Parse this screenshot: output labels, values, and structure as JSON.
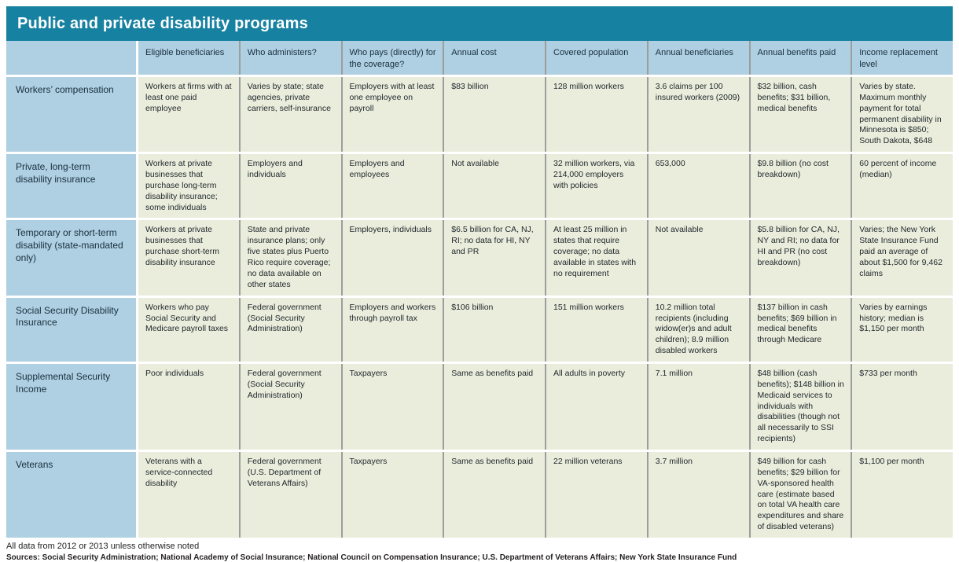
{
  "title": "Public and private disability programs",
  "colors": {
    "title_bar": "#1781a1",
    "header_cell": "#afcfe2",
    "label_cell": "#afcfe2",
    "data_cell": "#ebeddc",
    "column_divider": "#9b9e9b",
    "row_gap": "#ffffff",
    "title_text": "#ffffff"
  },
  "table": {
    "headers": [
      "Eligible beneficiaries",
      "Who administers?",
      "Who pays (directly) for the coverage?",
      "Annual cost",
      "Covered population",
      "Annual beneficiaries",
      "Annual benefits paid",
      "Income replacement level"
    ],
    "rows": [
      {
        "label": "Workers’ compensation",
        "cells": [
          "Workers at firms with at least one paid employee",
          "Varies by state; state agencies, private carriers, self-insurance",
          "Employers with at least one employee on payroll",
          "$83 billion",
          "128 million workers",
          "3.6 claims per 100 insured workers (2009)",
          "$32 billion, cash benefits; $31 billion, medical benefits",
          "Varies by state. Maximum monthly payment for total permanent disability in Minnesota is $850; South Dakota, $648"
        ]
      },
      {
        "label": "Private, long-term disability insurance",
        "cells": [
          "Workers at private businesses that purchase long-term disability insurance; some individuals",
          "Employers and individuals",
          "Employers and employees",
          "Not available",
          "32 million workers, via 214,000 employers with policies",
          "653,000",
          "$9.8 billion (no cost breakdown)",
          "60 percent of income (median)"
        ]
      },
      {
        "label": "Temporary or short-term disability (state-mandated only)",
        "cells": [
          "Workers at private businesses that purchase short-term disability insurance",
          "State and private insurance plans; only five states plus Puerto Rico require coverage; no data available on other states",
          "Employers, individuals",
          "$6.5 billion for CA, NJ, RI; no data for HI, NY and PR",
          "At least 25 million in states that require coverage; no data available in states with no requirement",
          "Not available",
          "$5.8 billion for CA, NJ, NY and RI; no data for HI and PR (no cost breakdown)",
          "Varies; the New York State Insurance Fund paid an average of about $1,500 for 9,462 claims"
        ]
      },
      {
        "label": "Social Security Disability Insurance",
        "cells": [
          "Workers who pay Social Security and Medicare payroll taxes",
          "Federal government (Social Security Administration)",
          "Employers and workers through payroll tax",
          "$106 billion",
          "151 million workers",
          "10.2 million total recipients (including widow(er)s and adult children); 8.9 million disabled workers",
          "$137 billion in cash benefits; $69 billion in medical benefits through Medicare",
          "Varies by earnings history; median is $1,150 per month"
        ]
      },
      {
        "label": "Supplemental Security Income",
        "cells": [
          "Poor individuals",
          "Federal government (Social Security Administration)",
          "Taxpayers",
          "Same as benefits paid",
          "All adults in poverty",
          "7.1 million",
          "$48 billion (cash benefits); $148 billion in Medicaid services to individuals with disabilities (though not all necessarily to SSI recipients)",
          "$733 per month"
        ]
      },
      {
        "label": "Veterans",
        "cells": [
          "Veterans with a service-connected disability",
          "Federal government (U.S. Department of Veterans Affairs)",
          "Taxpayers",
          "Same as benefits paid",
          "22 million veterans",
          "3.7 million",
          "$49 billion for cash benefits; $29 billion for VA-sponsored health care (estimate based on total VA health care expenditures and share of disabled veterans)",
          "$1,100 per month"
        ]
      }
    ]
  },
  "footer": {
    "note": "All data from 2012 or 2013 unless otherwise noted",
    "sources": "Sources:  Social Security Administration; National Academy of Social Insurance; National Council on Compensation Insurance; U.S. Department of Veterans Affairs; New York State Insurance Fund"
  }
}
